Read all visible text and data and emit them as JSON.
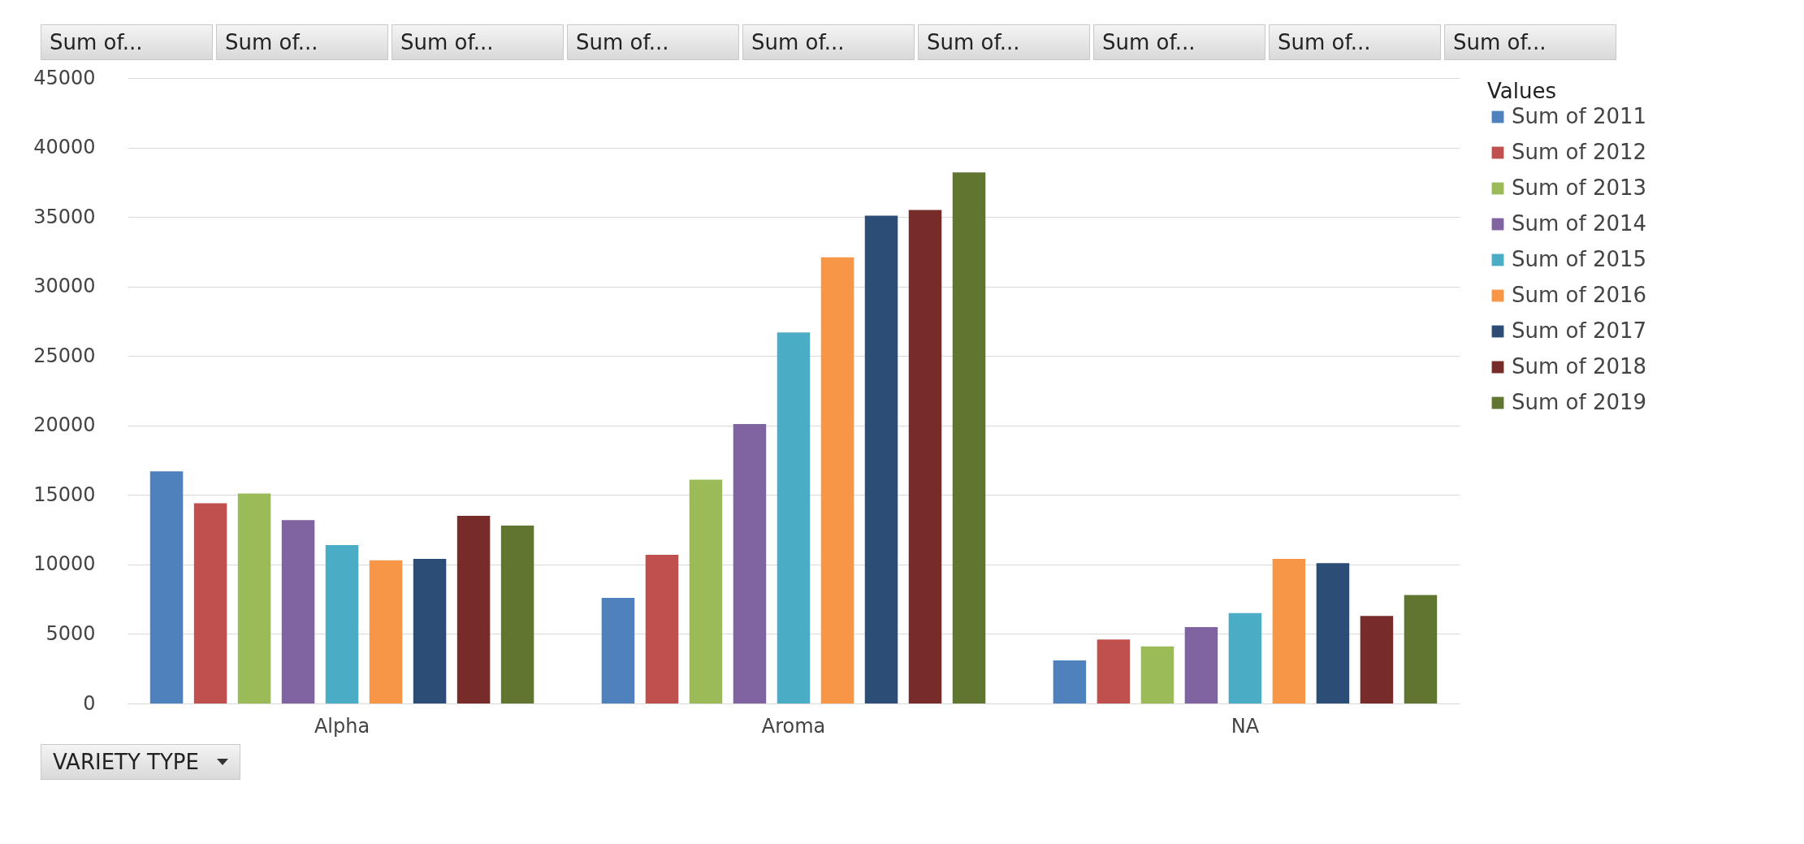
{
  "chart_data": {
    "type": "bar",
    "xlabel": "VARIETY TYPE",
    "legend_title": "Values",
    "legend": "right",
    "grid": "y",
    "annotations": [
      "Sum of...",
      "Sum of...",
      "Sum of...",
      "Sum of...",
      "Sum of...",
      "Sum of...",
      "Sum of...",
      "Sum of...",
      "Sum of..."
    ],
    "categories": [
      "Alpha",
      "Aroma",
      "NA"
    ],
    "ylim": [
      0,
      45000
    ],
    "yticks": [
      0,
      5000,
      10000,
      15000,
      20000,
      25000,
      30000,
      35000,
      40000,
      45000
    ],
    "series": [
      {
        "name": "Sum of 2011",
        "color": "#4f81bd",
        "values": [
          16700,
          7600,
          3100
        ]
      },
      {
        "name": "Sum of 2012",
        "color": "#c0504d",
        "values": [
          14400,
          10700,
          4600
        ]
      },
      {
        "name": "Sum of 2013",
        "color": "#9bbb59",
        "values": [
          15100,
          16100,
          4100
        ]
      },
      {
        "name": "Sum of 2014",
        "color": "#8064a2",
        "values": [
          13200,
          20100,
          5500
        ]
      },
      {
        "name": "Sum of 2015",
        "color": "#4bacc6",
        "values": [
          11400,
          26700,
          6500
        ]
      },
      {
        "name": "Sum of 2016",
        "color": "#f79646",
        "values": [
          10300,
          32100,
          10400
        ]
      },
      {
        "name": "Sum of 2017",
        "color": "#2c4d75",
        "values": [
          10400,
          35100,
          10100
        ]
      },
      {
        "name": "Sum of 2018",
        "color": "#772c2a",
        "values": [
          13500,
          35500,
          6300
        ]
      },
      {
        "name": "Sum of 2019",
        "color": "#5f7530",
        "values": [
          12800,
          38200,
          7800
        ]
      }
    ]
  }
}
